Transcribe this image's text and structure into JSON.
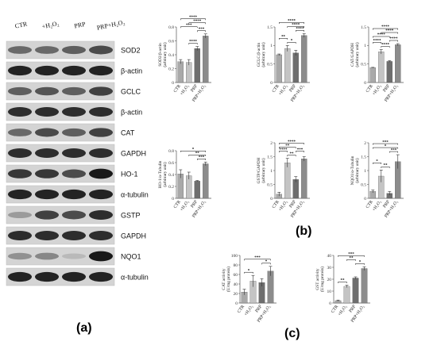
{
  "panel_labels": {
    "a": "(a)",
    "b": "(b)",
    "c": "(c)"
  },
  "blot": {
    "lanes": [
      "CTR",
      "+H2O2",
      "PRP",
      "PRP+H2O2"
    ],
    "rows": [
      {
        "label": "SOD2",
        "intensity": [
          0.55,
          0.55,
          0.6,
          0.7
        ]
      },
      {
        "label": "β-actin",
        "intensity": [
          0.9,
          0.9,
          0.9,
          0.9
        ]
      },
      {
        "label": "GCLC",
        "intensity": [
          0.6,
          0.65,
          0.6,
          0.75
        ]
      },
      {
        "label": "β-actin",
        "intensity": [
          0.85,
          0.85,
          0.85,
          0.85
        ]
      },
      {
        "label": "CAT",
        "intensity": [
          0.55,
          0.7,
          0.6,
          0.75
        ]
      },
      {
        "label": "GAPDH",
        "intensity": [
          0.85,
          0.85,
          0.85,
          0.85
        ]
      },
      {
        "label": "HO-1",
        "intensity": [
          0.8,
          0.8,
          0.7,
          0.95
        ]
      },
      {
        "label": "α-tubulin",
        "intensity": [
          0.9,
          0.9,
          0.9,
          0.9
        ]
      },
      {
        "label": "GSTP",
        "intensity": [
          0.3,
          0.75,
          0.7,
          0.85
        ]
      },
      {
        "label": "GAPDH",
        "intensity": [
          0.85,
          0.85,
          0.85,
          0.85
        ]
      },
      {
        "label": "NQO1",
        "intensity": [
          0.35,
          0.4,
          0.15,
          0.95
        ]
      },
      {
        "label": "α-tubulin",
        "intensity": [
          0.9,
          0.9,
          0.9,
          0.9
        ]
      }
    ]
  },
  "chart_data": [
    {
      "type": "bar",
      "panel": "b",
      "ylabel": "SOD2/β-actin\n(arbitrary unit)",
      "categories": [
        "CTR",
        "+H2O2",
        "PRP",
        "PRP+H2O2"
      ],
      "values": [
        0.3,
        0.29,
        0.49,
        0.67
      ],
      "errors": [
        0.03,
        0.04,
        0.03,
        0.03
      ],
      "ylim": [
        0,
        0.8
      ],
      "yticks": [
        0,
        0.2,
        0.4,
        0.6,
        0.8
      ],
      "colors": [
        "#a9a9a9",
        "#c4c4c4",
        "#6e6e6e",
        "#8c8c8c"
      ],
      "significance": [
        {
          "from": 1,
          "to": 2,
          "label": "****"
        },
        {
          "from": 2,
          "to": 3,
          "label": "***"
        },
        {
          "from": 0,
          "to": 2,
          "label": "***"
        },
        {
          "from": 1,
          "to": 3,
          "label": "****"
        },
        {
          "from": 0,
          "to": 3,
          "label": "****"
        }
      ]
    },
    {
      "type": "bar",
      "panel": "b",
      "ylabel": "GCLC/β-actin\n(arbitrary unit)",
      "categories": [
        "CTR",
        "+H2O2",
        "PRP",
        "PRP+H2O2"
      ],
      "values": [
        0.75,
        0.92,
        0.8,
        1.27
      ],
      "errors": [
        0.02,
        0.08,
        0.07,
        0.05
      ],
      "ylim": [
        0,
        1.5
      ],
      "yticks": [
        0,
        0.5,
        1.0,
        1.5
      ],
      "colors": [
        "#a9a9a9",
        "#c4c4c4",
        "#6e6e6e",
        "#8c8c8c"
      ],
      "significance": [
        {
          "from": 1,
          "to": 2,
          "label": "*"
        },
        {
          "from": 0,
          "to": 1,
          "label": "**"
        },
        {
          "from": 2,
          "to": 3,
          "label": "****"
        },
        {
          "from": 1,
          "to": 3,
          "label": "****"
        },
        {
          "from": 0,
          "to": 3,
          "label": "****"
        }
      ]
    },
    {
      "type": "bar",
      "panel": "b",
      "ylabel": "CAT/GAPDH\n(arbitrary unit)",
      "categories": [
        "CTR",
        "+H2O2",
        "PRP",
        "PRP+H2O2"
      ],
      "values": [
        0.4,
        0.83,
        0.57,
        1.02
      ],
      "errors": [
        0.01,
        0.06,
        0.02,
        0.03
      ],
      "ylim": [
        0,
        1.5
      ],
      "yticks": [
        0,
        0.5,
        1.0,
        1.5
      ],
      "colors": [
        "#a9a9a9",
        "#c4c4c4",
        "#6e6e6e",
        "#8c8c8c"
      ],
      "significance": [
        {
          "from": 1,
          "to": 2,
          "label": "****"
        },
        {
          "from": 0,
          "to": 2,
          "label": "****"
        },
        {
          "from": 2,
          "to": 3,
          "label": "****"
        },
        {
          "from": 0,
          "to": 1,
          "label": "****"
        },
        {
          "from": 1,
          "to": 3,
          "label": "****"
        },
        {
          "from": 0,
          "to": 3,
          "label": "****"
        }
      ]
    },
    {
      "type": "bar",
      "panel": "b",
      "ylabel": "HO-1/α-Tubulin\n(arbitrary unit)",
      "categories": [
        "CTR",
        "+H2O2",
        "PRP",
        "PRP+H2O2"
      ],
      "values": [
        0.41,
        0.38,
        0.29,
        0.58
      ],
      "errors": [
        0.07,
        0.06,
        0.01,
        0.03
      ],
      "ylim": [
        0,
        0.8
      ],
      "yticks": [
        0,
        0.2,
        0.4,
        0.6,
        0.8
      ],
      "colors": [
        "#a9a9a9",
        "#c4c4c4",
        "#6e6e6e",
        "#8c8c8c"
      ],
      "significance": [
        {
          "from": 2,
          "to": 3,
          "label": "***"
        },
        {
          "from": 1,
          "to": 3,
          "label": "**"
        },
        {
          "from": 0,
          "to": 3,
          "label": "*"
        }
      ]
    },
    {
      "type": "bar",
      "panel": "b",
      "ylabel": "GSTP/GAPDH\n(arbitrary unit)",
      "categories": [
        "CTR",
        "+H2O2",
        "PRP",
        "PRP+H2O2"
      ],
      "values": [
        0.15,
        1.28,
        0.68,
        1.42
      ],
      "errors": [
        0.07,
        0.16,
        0.1,
        0.08
      ],
      "ylim": [
        0,
        2.0
      ],
      "yticks": [
        0,
        0.5,
        1.0,
        1.5,
        2.0
      ],
      "colors": [
        "#a9a9a9",
        "#c4c4c4",
        "#6e6e6e",
        "#8c8c8c"
      ],
      "significance": [
        {
          "from": 1,
          "to": 2,
          "label": "**"
        },
        {
          "from": 2,
          "to": 3,
          "label": "***"
        },
        {
          "from": 0,
          "to": 1,
          "label": "****"
        },
        {
          "from": 0,
          "to": 2,
          "label": "**"
        },
        {
          "from": 0,
          "to": 3,
          "label": "****"
        }
      ]
    },
    {
      "type": "bar",
      "panel": "b",
      "ylabel": "NQO1/α-Tubulin\n(arbitrary unit)",
      "categories": [
        "CTR",
        "+H2O2",
        "PRP",
        "PRP+H2O2"
      ],
      "values": [
        0.25,
        0.8,
        0.18,
        1.32
      ],
      "errors": [
        0.05,
        0.22,
        0.07,
        0.25
      ],
      "ylim": [
        0,
        2.0
      ],
      "yticks": [
        0,
        0.5,
        1.0,
        1.5,
        2.0
      ],
      "colors": [
        "#a9a9a9",
        "#c4c4c4",
        "#6e6e6e",
        "#8c8c8c"
      ],
      "significance": [
        {
          "from": 1,
          "to": 2,
          "label": "**"
        },
        {
          "from": 0,
          "to": 1,
          "label": "*"
        },
        {
          "from": 2,
          "to": 3,
          "label": "***"
        },
        {
          "from": 0,
          "to": 3,
          "label": "*"
        },
        {
          "from": 0,
          "to": 3,
          "label": "***"
        }
      ]
    },
    {
      "type": "bar",
      "panel": "c",
      "ylabel": "CAT activity\n(U/mg protein)",
      "categories": [
        "CTR",
        "+H2O2",
        "PRP",
        "PRP+H2O2"
      ],
      "values": [
        23,
        46,
        43,
        67
      ],
      "errors": [
        6,
        12,
        8,
        10
      ],
      "ylim": [
        0,
        100
      ],
      "yticks": [
        0,
        20,
        40,
        60,
        80,
        100
      ],
      "colors": [
        "#a9a9a9",
        "#c4c4c4",
        "#6e6e6e",
        "#8c8c8c"
      ],
      "significance": [
        {
          "from": 0,
          "to": 1,
          "label": "*"
        },
        {
          "from": 2,
          "to": 3,
          "label": "*"
        },
        {
          "from": 0,
          "to": 3,
          "label": "***"
        }
      ]
    },
    {
      "type": "bar",
      "panel": "c",
      "ylabel": "GST activity\n(U/mg protein)",
      "categories": [
        "CTR",
        "+H2O2",
        "PRP",
        "PRP+H2O2"
      ],
      "values": [
        2,
        14,
        21,
        29
      ],
      "errors": [
        0.5,
        1,
        1,
        1.5
      ],
      "ylim": [
        0,
        40
      ],
      "yticks": [
        0,
        10,
        20,
        30,
        40
      ],
      "colors": [
        "#a9a9a9",
        "#c4c4c4",
        "#6e6e6e",
        "#8c8c8c"
      ],
      "significance": [
        {
          "from": 0,
          "to": 1,
          "label": "**"
        },
        {
          "from": 2,
          "to": 3,
          "label": "*"
        },
        {
          "from": 1,
          "to": 2,
          "label": "**"
        },
        {
          "from": 0,
          "to": 3,
          "label": "***"
        }
      ]
    }
  ]
}
